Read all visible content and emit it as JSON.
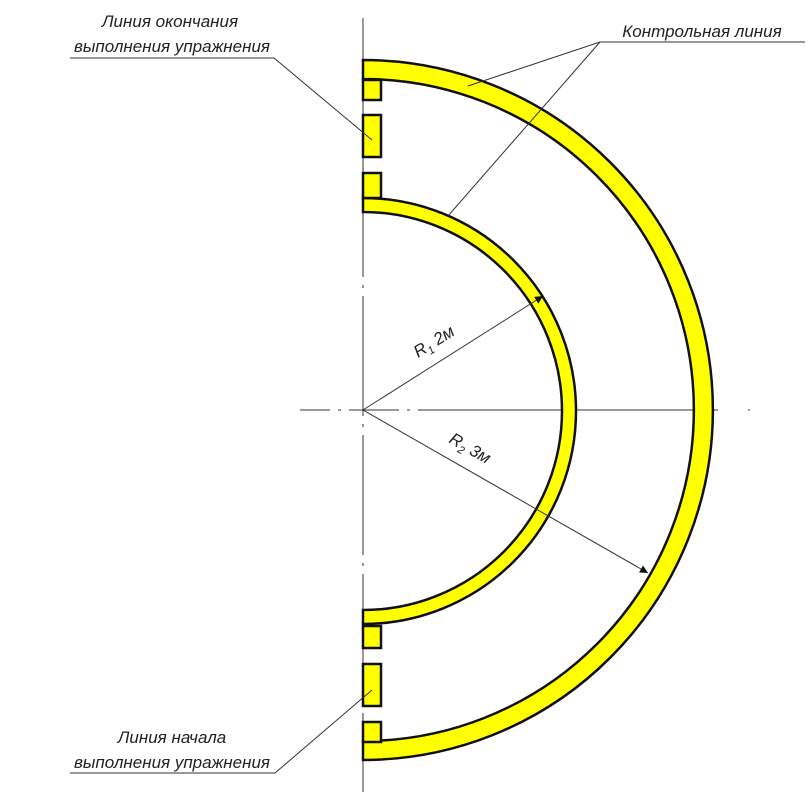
{
  "labels": {
    "end": [
      "Линия окончания",
      "выполнения упражнения"
    ],
    "control": "Контрольная линия",
    "start": [
      "Линия начала",
      "выполнения упражнения"
    ]
  },
  "radii": [
    {
      "symbol": "R",
      "index": "1",
      "value": "2м"
    },
    {
      "symbol": "R",
      "index": "2",
      "value": "3м"
    }
  ]
}
